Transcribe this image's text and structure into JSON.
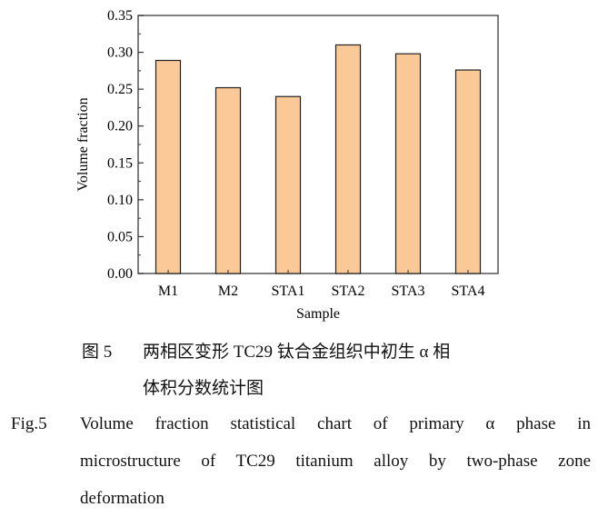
{
  "chart_data": {
    "type": "bar",
    "categories": [
      "M1",
      "M2",
      "STA1",
      "STA2",
      "STA3",
      "STA4"
    ],
    "values": [
      0.289,
      0.252,
      0.24,
      0.31,
      0.298,
      0.276
    ],
    "xlabel": "Sample",
    "ylabel": "Volume fraction",
    "ylim": [
      0,
      0.35
    ],
    "yticks": [
      "0.00",
      "0.05",
      "0.10",
      "0.15",
      "0.20",
      "0.25",
      "0.30",
      "0.35"
    ],
    "grid": false,
    "bar_color": "#FBC897"
  },
  "caption": {
    "cn_label": "图 5",
    "cn_line1": "两相区变形 TC29 钛合金组织中初生 α 相",
    "cn_line2": "体积分数统计图",
    "en_label": "Fig.5",
    "en_line1": "Volume fraction statistical chart of primary α phase in",
    "en_line2": "microstructure of TC29 titanium alloy by two-phase zone",
    "en_line3": "deformation"
  }
}
